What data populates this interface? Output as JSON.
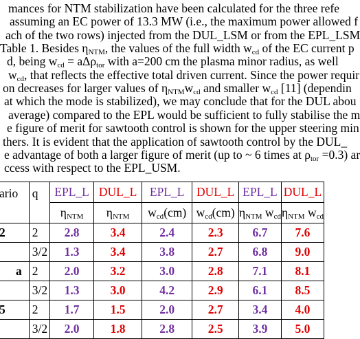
{
  "paragraph": {
    "lines": [
      [
        "mances for NTM stabilization have been calculated for the three refe"
      ],
      [
        "assuming an EC power of 13.3 MW (i.e., the maximum power allowed f"
      ],
      [
        "ach of the two rows) injected from the DUL_LSM or from the EPL_LSM"
      ],
      [
        "Table 1. Besides η",
        "NTM",
        ", the values of the full width w",
        "cd",
        " of the EC current p"
      ],
      [
        "d, being w",
        "cd",
        " = aΔρ",
        "tor",
        " with a=200 cm the plasma minor radius, as well"
      ],
      [
        "w",
        "cd",
        ", that reflects the effective total driven current. Since the power requir"
      ],
      [
        "on decreases for larger values of η",
        "NTM",
        "w",
        "cd",
        " and smaller w",
        "cd",
        " [11] (dependin"
      ],
      [
        "at which the mode is stabilized), we may conclude that for the DUL abou"
      ],
      [
        " average) compared to the EPL would be sufficient to fully stabilise the m"
      ],
      [
        "e figure of merit for sawtooth control is shown for the upper steering min"
      ],
      [
        "thers. It is evident that the application of sawtooth control by the DUL_"
      ],
      [
        "e advantage of both a larger figure of merit (up to ~ 6 times at ρ",
        "tor",
        " =0.3) ar"
      ],
      [
        "ccess with respect to the EPL_USM."
      ]
    ]
  },
  "table": {
    "header": [
      "ario",
      "q",
      "EPL_L",
      "DUL_L",
      "EPL_L",
      "DUL_L",
      "EPL_L",
      "DUL_L"
    ],
    "subheader": [
      [
        "η",
        "NTM"
      ],
      [
        "η",
        "NTM"
      ],
      [
        "w",
        "cd",
        "(cm)"
      ],
      [
        "w",
        "cd",
        "(cm)"
      ],
      [
        "η",
        "NTM",
        " w",
        "cd"
      ],
      [
        "η",
        "NTM",
        " w",
        "cd"
      ]
    ],
    "rows": [
      {
        "scenario": "2",
        "q": "2",
        "values": [
          "2.8",
          "3.4",
          "2.4",
          "2.3",
          "6.7",
          "7.6"
        ]
      },
      {
        "q": "3/2",
        "values": [
          "1.3",
          "3.4",
          "3.8",
          "2.7",
          "6.8",
          "9.0"
        ]
      },
      {
        "scenario": "a",
        "q": "2",
        "values": [
          "2.0",
          "3.2",
          "3.0",
          "2.8",
          "7.1",
          "8.1"
        ]
      },
      {
        "q": "3/2",
        "values": [
          "1.3",
          "3.0",
          "4.2",
          "2.9",
          "6.1",
          "8.5"
        ]
      },
      {
        "scenario": "5",
        "q": "2",
        "values": [
          "1.7",
          "1.5",
          "2.0",
          "2.7",
          "3.4",
          "4.0"
        ]
      },
      {
        "q": "3/2",
        "values": [
          "2.0",
          "1.8",
          "2.8",
          "2.5",
          "3.9",
          "5.0"
        ]
      }
    ]
  }
}
